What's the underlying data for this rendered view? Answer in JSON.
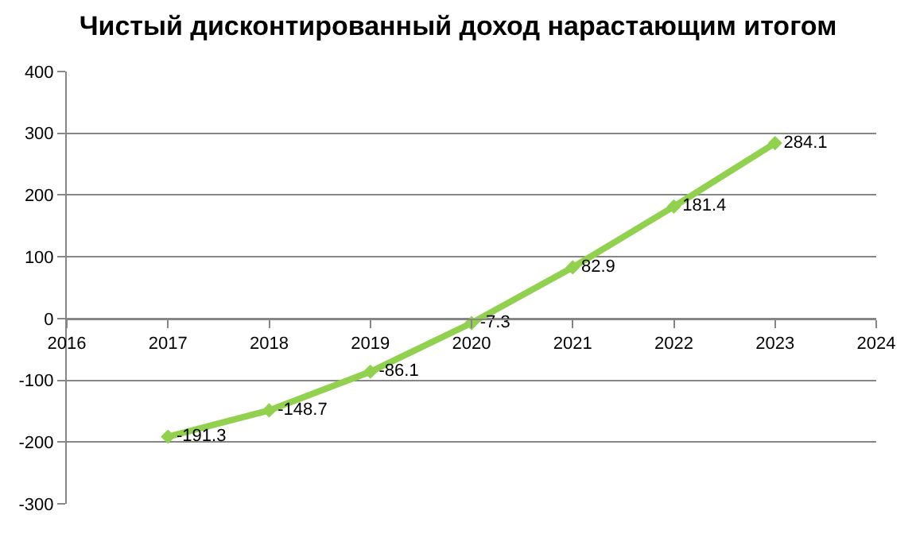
{
  "chart_data": {
    "type": "line",
    "title": "Чистый дисконтированный доход нарастающим итогом",
    "x": [
      2017,
      2018,
      2019,
      2020,
      2021,
      2022,
      2023
    ],
    "series": [
      {
        "color": "#92d050",
        "values": [
          -191.3,
          -148.7,
          -86.1,
          -7.3,
          82.9,
          181.4,
          284.1
        ]
      }
    ],
    "xlim": [
      2016,
      2024
    ],
    "xticks": [
      2016,
      2017,
      2018,
      2019,
      2020,
      2021,
      2022,
      2023,
      2024
    ],
    "ylim": [
      -300,
      400
    ],
    "yticks": [
      -300,
      -200,
      -100,
      0,
      100,
      200,
      300,
      400
    ],
    "grid": "y",
    "legend": false,
    "marker": "diamond",
    "line_style": "solid",
    "data_labels": true
  }
}
